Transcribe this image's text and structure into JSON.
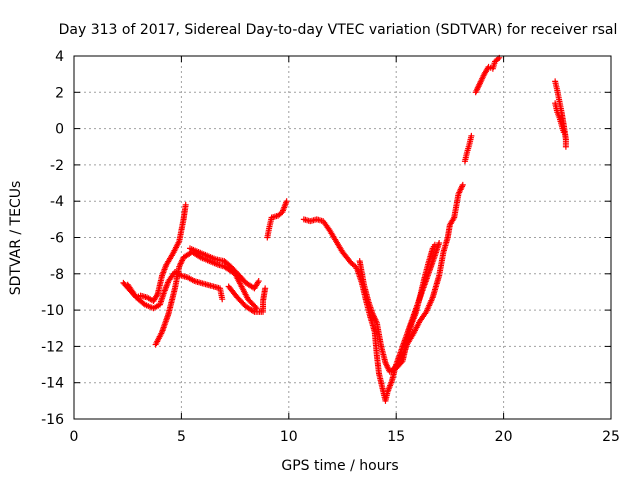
{
  "chart_data": {
    "type": "scatter",
    "title": "Day 313 of 2017, Sidereal Day-to-day VTEC variation (SDTVAR) for receiver rsal",
    "xlabel": "GPS time / hours",
    "ylabel": "SDTVAR / TECUs",
    "xlim": [
      0,
      25
    ],
    "ylim": [
      -16,
      4
    ],
    "xticks": [
      0,
      5,
      10,
      15,
      20,
      25
    ],
    "yticks": [
      -16,
      -14,
      -12,
      -10,
      -8,
      -6,
      -4,
      -2,
      0,
      2,
      4
    ],
    "grid": true,
    "marker": "+",
    "color": "#ff0000",
    "series": [
      {
        "points": [
          [
            2.3,
            -8.5
          ],
          [
            2.6,
            -8.9
          ],
          [
            2.9,
            -9.3
          ],
          [
            3.3,
            -9.7
          ],
          [
            3.7,
            -9.9
          ],
          [
            4.0,
            -9.7
          ],
          [
            4.2,
            -9.0
          ],
          [
            4.4,
            -8.4
          ],
          [
            4.7,
            -7.9
          ],
          [
            5.0,
            -8.1
          ],
          [
            5.3,
            -8.2
          ],
          [
            5.6,
            -8.4
          ],
          [
            5.9,
            -8.5
          ],
          [
            6.2,
            -8.6
          ],
          [
            6.5,
            -8.7
          ],
          [
            6.8,
            -8.8
          ],
          [
            6.9,
            -9.4
          ]
        ]
      },
      {
        "points": [
          [
            2.5,
            -8.6
          ],
          [
            2.9,
            -9.3
          ],
          [
            3.1,
            -9.2
          ],
          [
            3.4,
            -9.3
          ],
          [
            3.7,
            -9.5
          ],
          [
            3.9,
            -9.1
          ],
          [
            4.1,
            -8.1
          ],
          [
            4.3,
            -7.5
          ],
          [
            4.6,
            -6.9
          ],
          [
            4.9,
            -6.2
          ],
          [
            5.1,
            -5.0
          ],
          [
            5.2,
            -4.2
          ]
        ]
      },
      {
        "points": [
          [
            3.8,
            -11.9
          ],
          [
            4.1,
            -11.2
          ],
          [
            4.4,
            -10.2
          ],
          [
            4.7,
            -8.8
          ],
          [
            4.9,
            -7.6
          ],
          [
            5.1,
            -7.1
          ],
          [
            5.5,
            -6.8
          ],
          [
            5.9,
            -7.1
          ],
          [
            6.3,
            -7.3
          ],
          [
            6.7,
            -7.5
          ],
          [
            7.0,
            -7.6
          ],
          [
            7.5,
            -8.0
          ],
          [
            7.8,
            -8.7
          ],
          [
            8.1,
            -9.4
          ],
          [
            8.5,
            -9.9
          ]
        ]
      },
      {
        "points": [
          [
            5.4,
            -6.6
          ],
          [
            5.8,
            -6.8
          ],
          [
            6.2,
            -7.0
          ],
          [
            6.6,
            -7.2
          ],
          [
            7.0,
            -7.3
          ],
          [
            7.3,
            -7.6
          ],
          [
            7.7,
            -8.1
          ],
          [
            8.0,
            -8.5
          ],
          [
            8.4,
            -8.8
          ],
          [
            8.6,
            -8.4
          ]
        ]
      },
      {
        "points": [
          [
            7.2,
            -8.7
          ],
          [
            7.6,
            -9.3
          ],
          [
            8.0,
            -9.8
          ],
          [
            8.4,
            -10.1
          ],
          [
            8.8,
            -10.1
          ],
          [
            8.8,
            -9.5
          ],
          [
            8.9,
            -8.8
          ]
        ]
      },
      {
        "points": [
          [
            9.0,
            -6.0
          ],
          [
            9.1,
            -5.4
          ],
          [
            9.2,
            -4.9
          ],
          [
            9.5,
            -4.8
          ],
          [
            9.7,
            -4.6
          ],
          [
            9.9,
            -4.0
          ]
        ]
      },
      {
        "points": [
          [
            10.7,
            -5.0
          ],
          [
            11.0,
            -5.1
          ],
          [
            11.3,
            -5.0
          ],
          [
            11.6,
            -5.1
          ],
          [
            11.9,
            -5.6
          ],
          [
            12.2,
            -6.2
          ],
          [
            12.5,
            -6.8
          ],
          [
            12.9,
            -7.4
          ],
          [
            13.1,
            -7.6
          ],
          [
            13.2,
            -7.8
          ],
          [
            13.4,
            -8.5
          ],
          [
            13.6,
            -9.5
          ],
          [
            13.8,
            -10.4
          ],
          [
            14.0,
            -11.2
          ],
          [
            14.1,
            -12.5
          ],
          [
            14.2,
            -13.5
          ],
          [
            14.4,
            -14.5
          ],
          [
            14.5,
            -15.0
          ],
          [
            14.6,
            -14.5
          ],
          [
            14.8,
            -13.9
          ],
          [
            15.0,
            -13.0
          ],
          [
            15.3,
            -12.0
          ],
          [
            15.6,
            -11.0
          ],
          [
            15.9,
            -10.0
          ],
          [
            16.2,
            -9.0
          ],
          [
            16.5,
            -8.0
          ],
          [
            16.8,
            -7.0
          ],
          [
            17.0,
            -6.3
          ]
        ]
      },
      {
        "points": [
          [
            13.3,
            -7.3
          ],
          [
            13.5,
            -8.6
          ],
          [
            13.7,
            -9.5
          ],
          [
            13.9,
            -10.2
          ],
          [
            14.1,
            -10.7
          ],
          [
            14.3,
            -12.0
          ],
          [
            14.5,
            -12.9
          ],
          [
            14.7,
            -13.4
          ],
          [
            15.0,
            -13.2
          ],
          [
            15.3,
            -12.8
          ],
          [
            15.5,
            -11.8
          ],
          [
            15.7,
            -10.8
          ],
          [
            15.9,
            -10.2
          ],
          [
            16.1,
            -9.3
          ],
          [
            16.3,
            -8.3
          ],
          [
            16.5,
            -7.4
          ],
          [
            16.7,
            -6.6
          ],
          [
            16.8,
            -6.4
          ]
        ]
      },
      {
        "points": [
          [
            14.9,
            -13.2
          ],
          [
            15.2,
            -12.8
          ],
          [
            15.5,
            -11.9
          ],
          [
            15.8,
            -11.3
          ],
          [
            16.1,
            -10.6
          ],
          [
            16.4,
            -10.1
          ],
          [
            16.7,
            -9.3
          ],
          [
            17.0,
            -8.1
          ],
          [
            17.2,
            -6.8
          ],
          [
            17.4,
            -6.0
          ],
          [
            17.5,
            -5.3
          ],
          [
            17.7,
            -4.9
          ],
          [
            17.9,
            -3.6
          ],
          [
            18.1,
            -3.1
          ]
        ]
      },
      {
        "points": [
          [
            18.2,
            -1.8
          ],
          [
            18.3,
            -1.3
          ],
          [
            18.4,
            -0.9
          ],
          [
            18.5,
            -0.4
          ]
        ]
      },
      {
        "points": [
          [
            18.7,
            2.0
          ],
          [
            18.9,
            2.5
          ],
          [
            19.1,
            3.0
          ],
          [
            19.3,
            3.4
          ],
          [
            19.5,
            3.3
          ],
          [
            19.6,
            3.7
          ],
          [
            19.8,
            3.9
          ]
        ]
      },
      {
        "points": [
          [
            22.4,
            2.6
          ],
          [
            22.5,
            2.1
          ],
          [
            22.6,
            1.5
          ],
          [
            22.7,
            0.9
          ],
          [
            22.8,
            0.2
          ],
          [
            22.9,
            -0.6
          ],
          [
            22.9,
            -1.0
          ]
        ]
      },
      {
        "points": [
          [
            22.4,
            1.4
          ],
          [
            22.5,
            0.9
          ],
          [
            22.6,
            0.6
          ],
          [
            22.7,
            0.2
          ],
          [
            22.8,
            -0.2
          ]
        ]
      }
    ]
  }
}
